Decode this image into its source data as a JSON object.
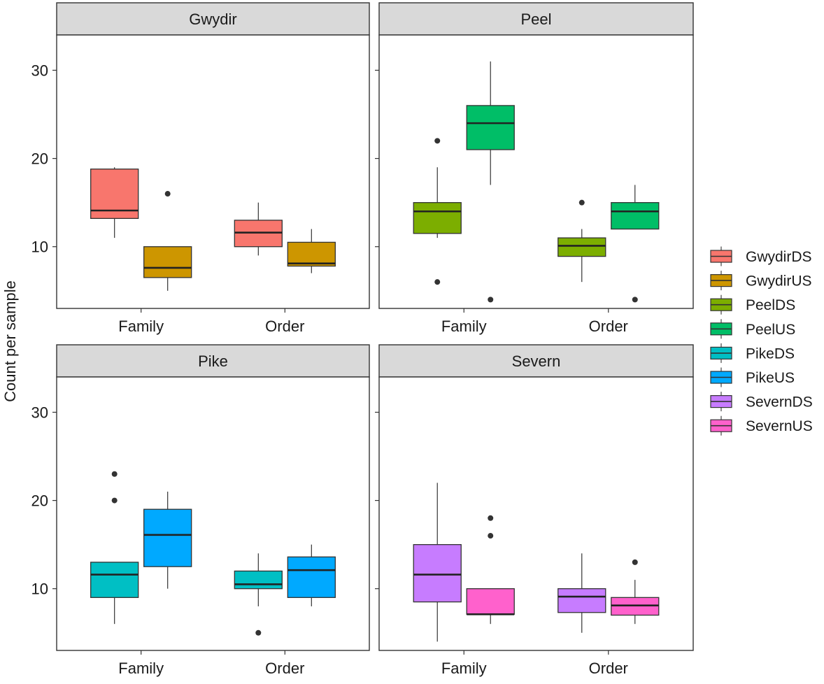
{
  "chart_data": {
    "type": "boxplot",
    "ylabel": "Count per sample",
    "xlabel": "",
    "ylim": [
      3,
      34
    ],
    "y_ticks": [
      10,
      20,
      30
    ],
    "categories": [
      "Family",
      "Order"
    ],
    "legend_position": "right",
    "series": [
      {
        "name": "GwydirDS",
        "color": "#F8766D"
      },
      {
        "name": "GwydirUS",
        "color": "#CD9600"
      },
      {
        "name": "PeelDS",
        "color": "#7CAE00"
      },
      {
        "name": "PeelUS",
        "color": "#00BE67"
      },
      {
        "name": "PikeDS",
        "color": "#00BFC4"
      },
      {
        "name": "PikeUS",
        "color": "#00A9FF"
      },
      {
        "name": "SevernDS",
        "color": "#C77CFF"
      },
      {
        "name": "SevernUS",
        "color": "#FF61CC"
      }
    ],
    "panels": [
      {
        "title": "Gwydir",
        "groups": [
          {
            "category": "Family",
            "series": "GwydirDS",
            "min": 11,
            "q1": 13.2,
            "median": 14.1,
            "q3": 18.8,
            "max": 19,
            "outliers": []
          },
          {
            "category": "Family",
            "series": "GwydirUS",
            "min": 5,
            "q1": 6.5,
            "median": 7.6,
            "q3": 10,
            "max": 10,
            "outliers": [
              16
            ]
          },
          {
            "category": "Order",
            "series": "GwydirDS",
            "min": 9,
            "q1": 10,
            "median": 11.6,
            "q3": 13,
            "max": 15,
            "outliers": []
          },
          {
            "category": "Order",
            "series": "GwydirUS",
            "min": 7,
            "q1": 7.8,
            "median": 8.1,
            "q3": 10.5,
            "max": 12,
            "outliers": []
          }
        ]
      },
      {
        "title": "Peel",
        "groups": [
          {
            "category": "Family",
            "series": "PeelDS",
            "min": 11,
            "q1": 11.5,
            "median": 14,
            "q3": 15,
            "max": 19,
            "outliers": [
              22,
              6
            ]
          },
          {
            "category": "Family",
            "series": "PeelUS",
            "min": 17,
            "q1": 21,
            "median": 24,
            "q3": 26,
            "max": 31,
            "outliers": [
              4
            ]
          },
          {
            "category": "Order",
            "series": "PeelDS",
            "min": 6,
            "q1": 8.9,
            "median": 10.1,
            "q3": 11,
            "max": 12,
            "outliers": [
              15
            ]
          },
          {
            "category": "Order",
            "series": "PeelUS",
            "min": 12,
            "q1": 12,
            "median": 14,
            "q3": 15,
            "max": 17,
            "outliers": [
              4
            ]
          }
        ]
      },
      {
        "title": "Pike",
        "groups": [
          {
            "category": "Family",
            "series": "PikeDS",
            "min": 6,
            "q1": 9,
            "median": 11.6,
            "q3": 13,
            "max": 13,
            "outliers": [
              23,
              20
            ]
          },
          {
            "category": "Family",
            "series": "PikeUS",
            "min": 10,
            "q1": 12.5,
            "median": 16.1,
            "q3": 19,
            "max": 21,
            "outliers": []
          },
          {
            "category": "Order",
            "series": "PikeDS",
            "min": 8,
            "q1": 10,
            "median": 10.5,
            "q3": 12,
            "max": 14,
            "outliers": [
              5
            ]
          },
          {
            "category": "Order",
            "series": "PikeUS",
            "min": 8,
            "q1": 9,
            "median": 12.1,
            "q3": 13.6,
            "max": 15,
            "outliers": []
          }
        ]
      },
      {
        "title": "Severn",
        "groups": [
          {
            "category": "Family",
            "series": "SevernDS",
            "min": 4,
            "q1": 8.5,
            "median": 11.6,
            "q3": 15,
            "max": 22,
            "outliers": []
          },
          {
            "category": "Family",
            "series": "SevernUS",
            "min": 6,
            "q1": 7.1,
            "median": 7.1,
            "q3": 10,
            "max": 10,
            "outliers": [
              18,
              16
            ]
          },
          {
            "category": "Order",
            "series": "SevernDS",
            "min": 5,
            "q1": 7.3,
            "median": 9.1,
            "q3": 10,
            "max": 14,
            "outliers": []
          },
          {
            "category": "Order",
            "series": "SevernUS",
            "min": 6,
            "q1": 7,
            "median": 8.1,
            "q3": 9,
            "max": 11,
            "outliers": [
              13
            ]
          }
        ]
      }
    ]
  }
}
